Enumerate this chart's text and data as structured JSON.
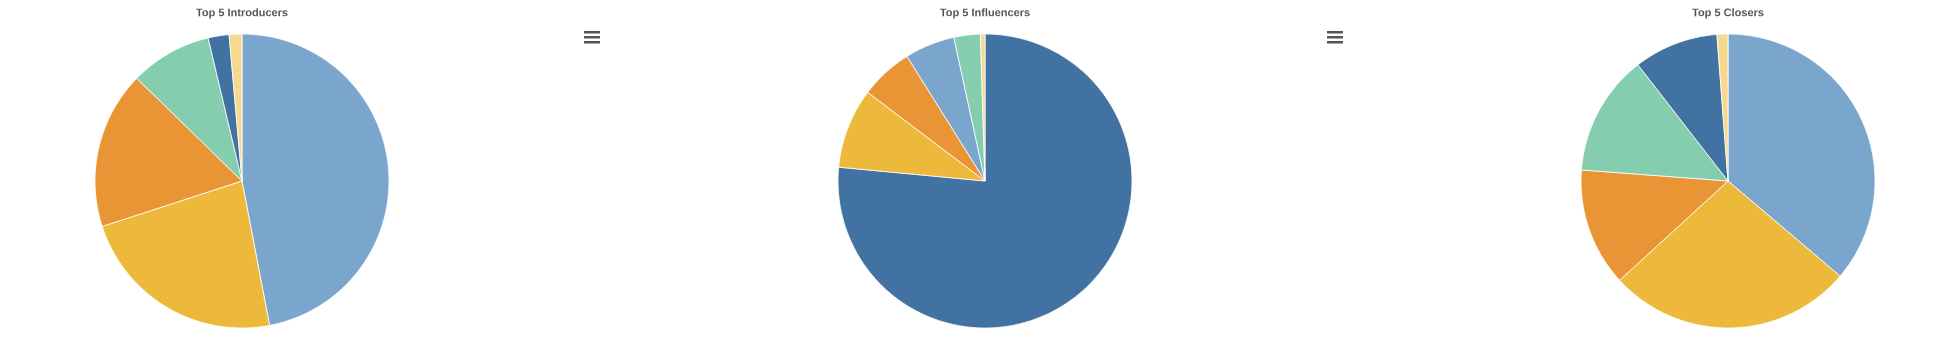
{
  "chart_data": [
    {
      "type": "pie",
      "title": "Top 5 Introducers",
      "categories": [
        null,
        null,
        null,
        null,
        null,
        null
      ],
      "values": [
        47,
        23,
        17.3,
        9,
        2.3,
        1.4
      ],
      "colors": [
        "#7aa6cd",
        "#edb93b",
        "#e99535",
        "#84cdae",
        "#4172a2",
        "#f7d88f"
      ]
    },
    {
      "type": "pie",
      "title": "Top 5 Influencers",
      "categories": [
        null,
        null,
        null,
        null,
        null,
        null
      ],
      "values": [
        76.5,
        8.8,
        5.8,
        5.5,
        2.9,
        0.5
      ],
      "colors": [
        "#4172a2",
        "#edb93b",
        "#e99535",
        "#7aa6cd",
        "#84cdae",
        "#f7d88f"
      ]
    },
    {
      "type": "pie",
      "title": "Top 5 Closers",
      "categories": [
        null,
        null,
        null,
        null,
        null,
        null
      ],
      "values": [
        36.2,
        27,
        13,
        13.3,
        9.3,
        1.2
      ],
      "colors": [
        "#7aa6cd",
        "#edb93b",
        "#e99535",
        "#84cdae",
        "#4172a2",
        "#f7d88f"
      ]
    }
  ]
}
